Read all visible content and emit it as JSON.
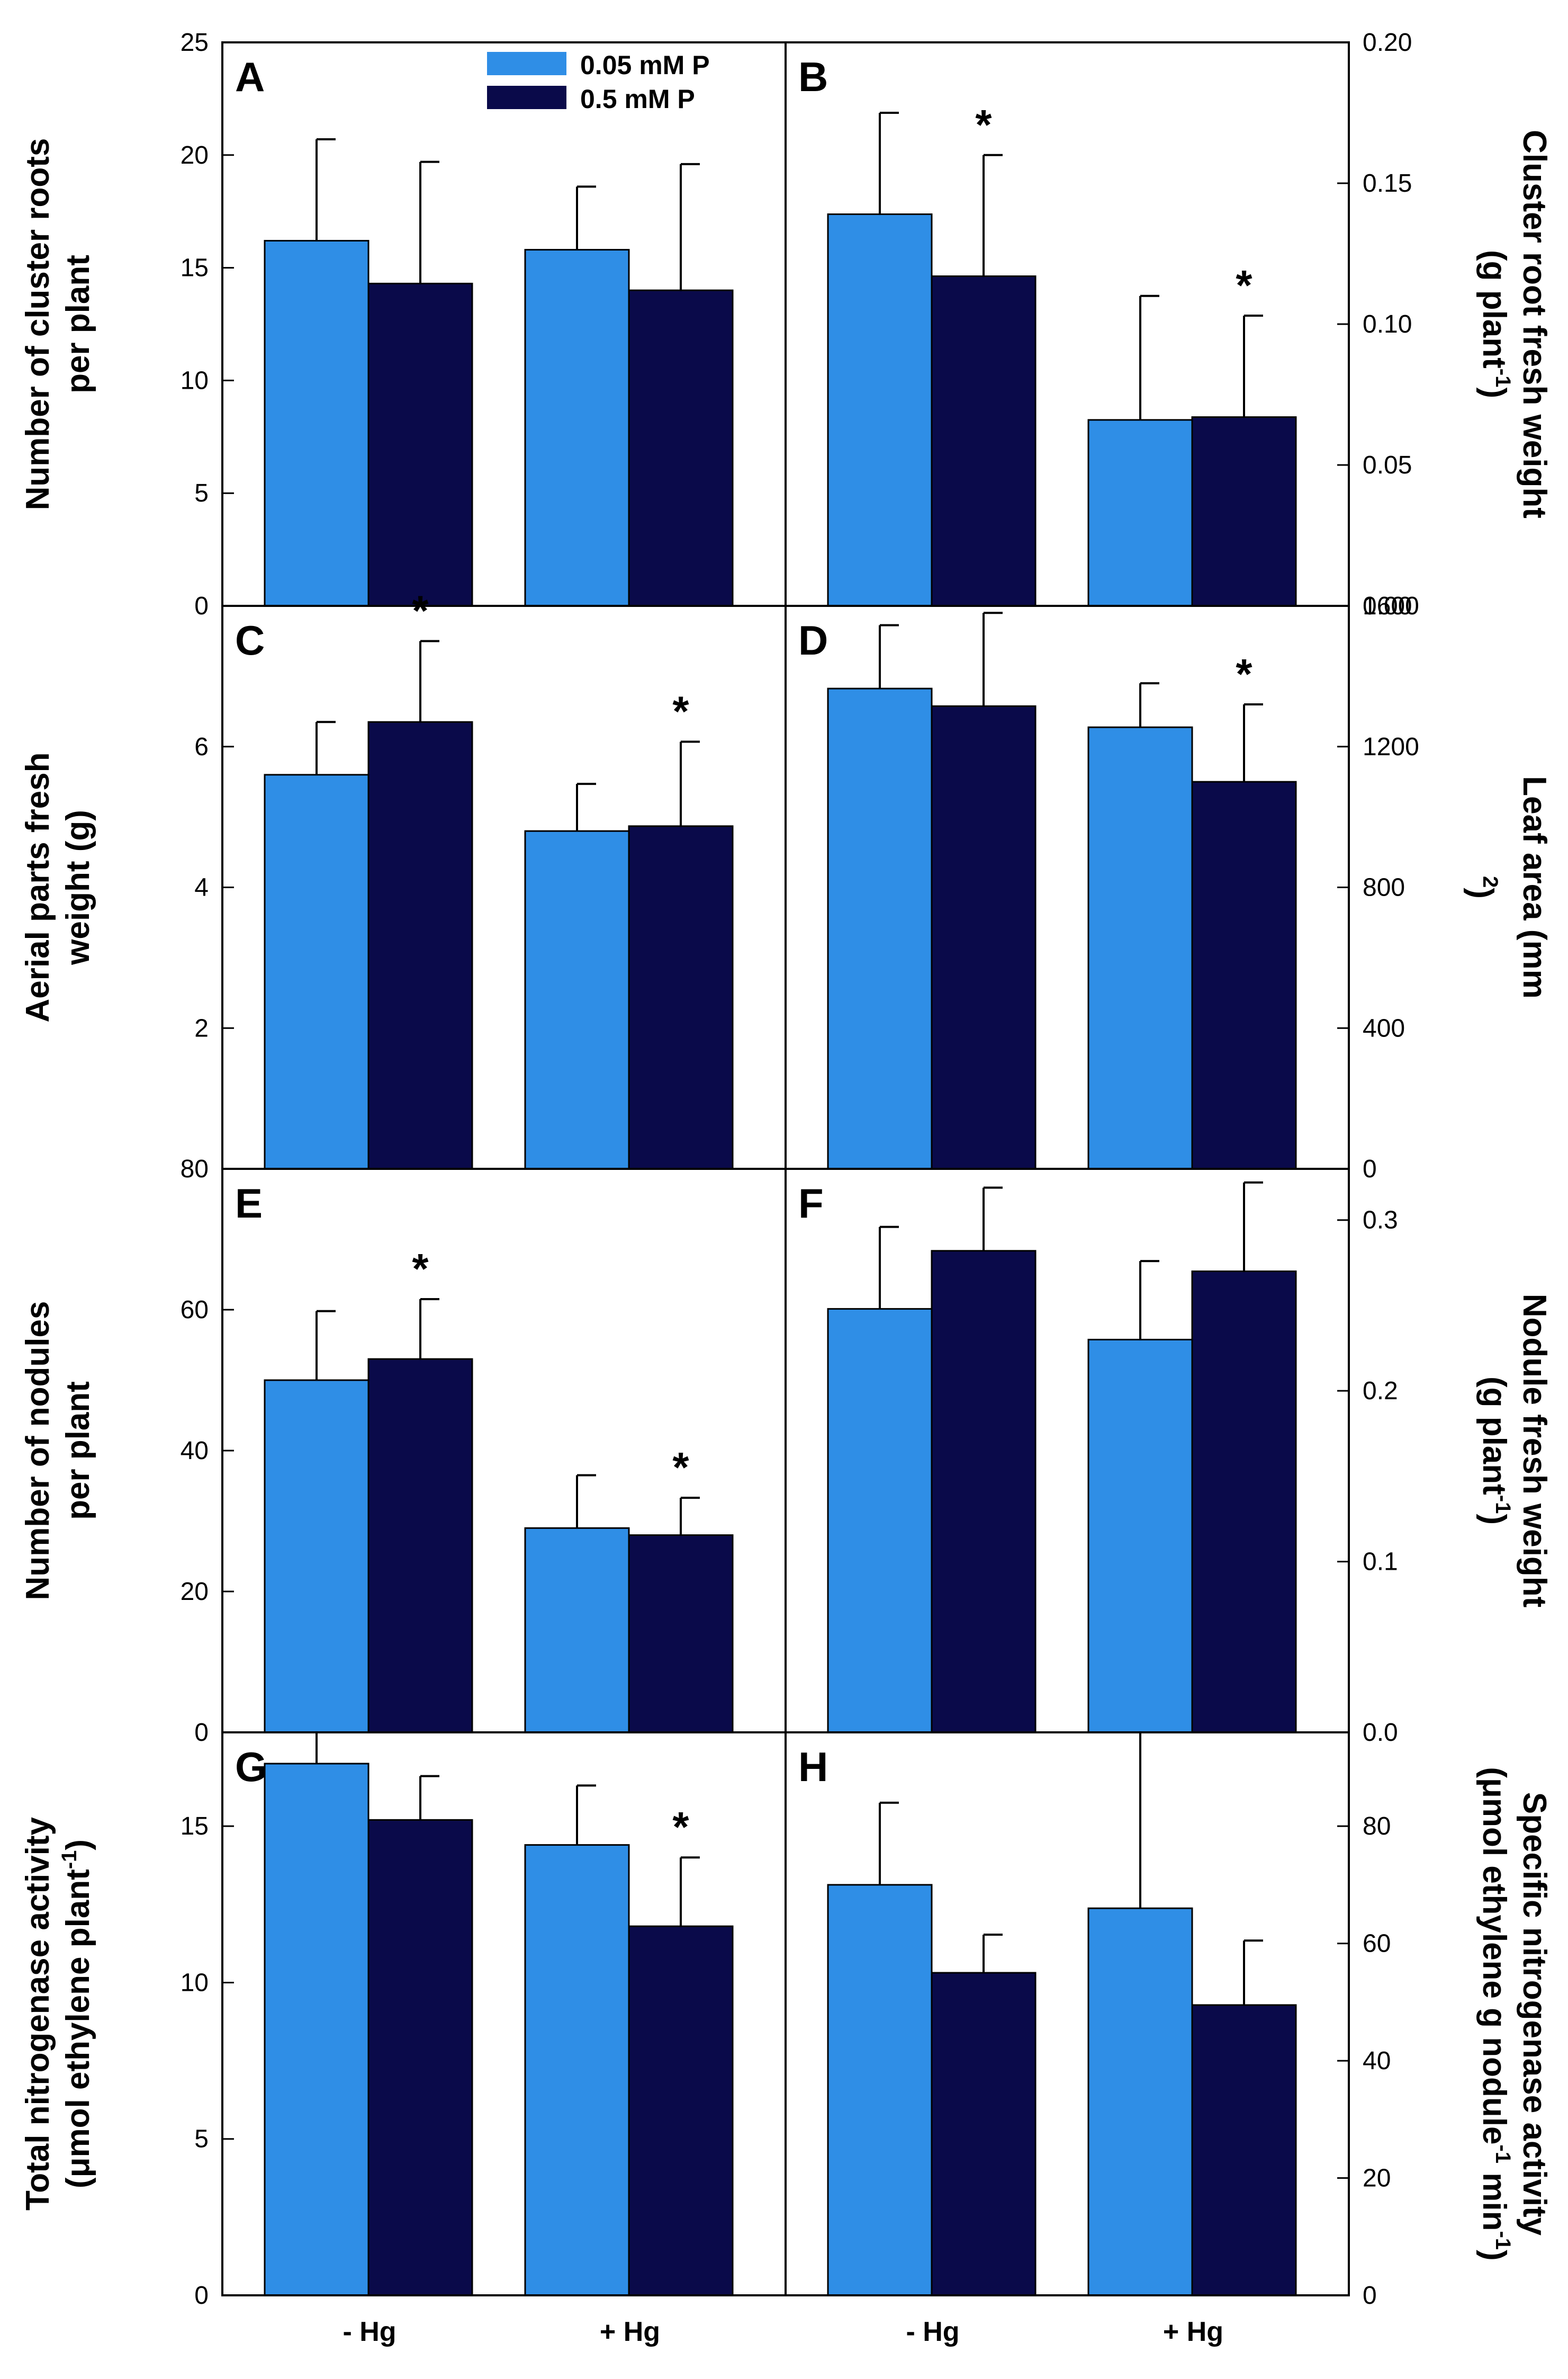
{
  "colors": {
    "low_p": "#2f8ee6",
    "high_p": "#0a0a4a"
  },
  "legend": [
    {
      "label": "0.05 mM P",
      "color": "#2f8ee6"
    },
    {
      "label": "0.5 mM P",
      "color": "#0a0a4a"
    }
  ],
  "categories": [
    "- Hg",
    "+ Hg"
  ],
  "chart_data": [
    {
      "panel": "A",
      "type": "bar",
      "side": "left",
      "ylabel": [
        "Number of cluster roots",
        "per plant"
      ],
      "ylim": [
        0,
        25
      ],
      "yticks": [
        "0",
        "5",
        "10",
        "15",
        "20",
        "25"
      ],
      "categories": [
        "- Hg",
        "+ Hg"
      ],
      "series": [
        {
          "name": "0.05 mM P",
          "values": [
            16.2,
            15.8
          ],
          "errors": [
            4.5,
            2.8
          ]
        },
        {
          "name": "0.5 mM P",
          "values": [
            14.3,
            14.0
          ],
          "errors": [
            5.4,
            5.6
          ]
        }
      ],
      "stars": [
        "",
        "",
        "",
        ""
      ]
    },
    {
      "panel": "B",
      "type": "bar",
      "side": "right",
      "ylabel": [
        "Cluster root fresh weight",
        "(g plant",
        "-1",
        ")"
      ],
      "ylim": [
        0,
        0.2
      ],
      "yticks": [
        "0.00",
        "0.05",
        "0.10",
        "0.15",
        "0.20"
      ],
      "categories": [
        "- Hg",
        "+ Hg"
      ],
      "series": [
        {
          "name": "0.05 mM P",
          "values": [
            0.139,
            0.066
          ],
          "errors": [
            0.036,
            0.044
          ]
        },
        {
          "name": "0.5 mM P",
          "values": [
            0.117,
            0.067
          ],
          "errors": [
            0.043,
            0.036
          ]
        }
      ],
      "stars": [
        "",
        "*",
        "",
        "*"
      ]
    },
    {
      "panel": "C",
      "type": "bar",
      "side": "left",
      "ylabel": [
        "Aerial parts fresh",
        "weight (g)"
      ],
      "ylim": [
        0,
        8
      ],
      "yticks": [
        "2",
        "4",
        "6"
      ],
      "categories": [
        "- Hg",
        "+ Hg"
      ],
      "series": [
        {
          "name": "0.05 mM P",
          "values": [
            5.6,
            4.8
          ],
          "errors": [
            0.75,
            0.67
          ]
        },
        {
          "name": "0.5 mM P",
          "values": [
            6.35,
            4.87
          ],
          "errors": [
            1.15,
            1.2
          ]
        }
      ],
      "stars": [
        "",
        "*",
        "",
        "*"
      ]
    },
    {
      "panel": "D",
      "type": "bar",
      "side": "right",
      "ylabel": [
        "Leaf area (mm",
        "2",
        ")"
      ],
      "ylim": [
        0,
        1600
      ],
      "yticks": [
        "0",
        "400",
        "800",
        "1200",
        "1600"
      ],
      "categories": [
        "- Hg",
        "+ Hg"
      ],
      "series": [
        {
          "name": "0.05 mM P",
          "values": [
            1365,
            1255
          ],
          "errors": [
            180,
            125
          ]
        },
        {
          "name": "0.5 mM P",
          "values": [
            1315,
            1100
          ],
          "errors": [
            265,
            220
          ]
        }
      ],
      "stars": [
        "",
        "",
        "",
        "*"
      ]
    },
    {
      "panel": "E",
      "type": "bar",
      "side": "left",
      "ylabel": [
        "Number of nodules",
        "per plant"
      ],
      "ylim": [
        0,
        80
      ],
      "yticks": [
        "0",
        "20",
        "40",
        "60",
        "80"
      ],
      "categories": [
        "- Hg",
        "+ Hg"
      ],
      "series": [
        {
          "name": "0.05 mM P",
          "values": [
            50,
            29
          ],
          "errors": [
            9.8,
            7.5
          ]
        },
        {
          "name": "0.5 mM P",
          "values": [
            53,
            28
          ],
          "errors": [
            8.5,
            5.3
          ]
        }
      ],
      "stars": [
        "",
        "*",
        "",
        "*"
      ]
    },
    {
      "panel": "F",
      "type": "bar",
      "side": "right",
      "ylabel": [
        "Nodule fresh weight",
        "(g plant",
        "-1",
        ")"
      ],
      "ylim": [
        0,
        0.33
      ],
      "yticks": [
        "0.0",
        "0.1",
        "0.2",
        "0.3"
      ],
      "categories": [
        "- Hg",
        "+ Hg"
      ],
      "series": [
        {
          "name": "0.05 mM P",
          "values": [
            0.248,
            0.23
          ],
          "errors": [
            0.048,
            0.046
          ]
        },
        {
          "name": "0.5 mM P",
          "values": [
            0.282,
            0.27
          ],
          "errors": [
            0.037,
            0.052
          ]
        }
      ],
      "stars": [
        "",
        "",
        "",
        ""
      ]
    },
    {
      "panel": "G",
      "type": "bar",
      "side": "left",
      "ylabel": [
        "Total nitrogenase activity",
        "(μmol ethylene plant",
        "-1",
        ")"
      ],
      "ylim": [
        0,
        18
      ],
      "yticks": [
        "0",
        "5",
        "10",
        "15"
      ],
      "categories": [
        "- Hg",
        "+ Hg"
      ],
      "series": [
        {
          "name": "0.05 mM P",
          "values": [
            17.0,
            14.4
          ],
          "errors": [
            1.2,
            1.9
          ]
        },
        {
          "name": "0.5 mM P",
          "values": [
            15.2,
            11.8
          ],
          "errors": [
            1.4,
            2.2
          ]
        }
      ],
      "stars": [
        "",
        "",
        "",
        "*"
      ]
    },
    {
      "panel": "H",
      "type": "bar",
      "side": "right",
      "ylabel": [
        "Specific nitrogenase activity",
        "(μmol ethylene g nodule",
        "-1",
        " min",
        "-1",
        ")"
      ],
      "ylim": [
        0,
        96
      ],
      "yticks": [
        "0",
        "20",
        "40",
        "60",
        "80"
      ],
      "categories": [
        "- Hg",
        "+ Hg"
      ],
      "series": [
        {
          "name": "0.05 mM P",
          "values": [
            70,
            66
          ],
          "errors": [
            14,
            31
          ]
        },
        {
          "name": "0.5 mM P",
          "values": [
            55,
            49.5
          ],
          "errors": [
            6.5,
            11
          ]
        }
      ],
      "stars": [
        "",
        "",
        "",
        ""
      ]
    }
  ]
}
